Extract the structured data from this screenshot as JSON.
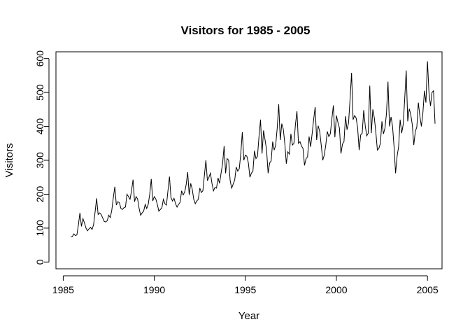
{
  "chart_data": {
    "type": "line",
    "title": "Visitors for 1985 - 2005",
    "xlabel": "Year",
    "ylabel": "Visitors",
    "xlim": [
      1984.6,
      2005.8
    ],
    "ylim": [
      -20,
      620
    ],
    "x_ticks": [
      1985,
      1990,
      1995,
      2000,
      2005
    ],
    "y_ticks": [
      0,
      100,
      200,
      300,
      400,
      500,
      600
    ],
    "grid": false,
    "legend": "none",
    "line_color": "#000000",
    "series": [
      {
        "x_start": 1985.4167,
        "step": 0.083333,
        "values": [
          75,
          75,
          83,
          78,
          80,
          110,
          145,
          105,
          128,
          115,
          100,
          92,
          98,
          102,
          96,
          110,
          148,
          188,
          140,
          145,
          140,
          130,
          120,
          118,
          122,
          138,
          131,
          153,
          190,
          222,
          168,
          178,
          175,
          158,
          155,
          160,
          162,
          200,
          193,
          185,
          210,
          243,
          178,
          193,
          186,
          158,
          138,
          145,
          150,
          170,
          158,
          170,
          200,
          245,
          180,
          193,
          186,
          170,
          150,
          155,
          160,
          185,
          172,
          168,
          210,
          252,
          190,
          180,
          188,
          172,
          162,
          170,
          176,
          210,
          198,
          206,
          228,
          265,
          198,
          232,
          215,
          185,
          172,
          180,
          185,
          218,
          205,
          210,
          255,
          300,
          240,
          250,
          262,
          232,
          210,
          220,
          218,
          248,
          232,
          262,
          290,
          342,
          262,
          305,
          300,
          240,
          218,
          230,
          242,
          280,
          268,
          275,
          320,
          383,
          300,
          315,
          312,
          292,
          250,
          262,
          268,
          328,
          305,
          312,
          370,
          420,
          320,
          388,
          360,
          330,
          262,
          292,
          298,
          355,
          330,
          345,
          395,
          465,
          360,
          408,
          392,
          350,
          290,
          325,
          318,
          378,
          345,
          350,
          405,
          445,
          350,
          355,
          342,
          335,
          285,
          305,
          310,
          370,
          340,
          378,
          420,
          457,
          360,
          402,
          385,
          345,
          300,
          315,
          345,
          385,
          370,
          378,
          422,
          462,
          368,
          432,
          412,
          395,
          320,
          348,
          355,
          430,
          390,
          410,
          480,
          558,
          420,
          432,
          425,
          395,
          330,
          375,
          380,
          448,
          402,
          372,
          380,
          520,
          380,
          450,
          425,
          382,
          330,
          335,
          350,
          415,
          378,
          395,
          438,
          532,
          400,
          428,
          400,
          340,
          262,
          312,
          340,
          420,
          380,
          405,
          480,
          565,
          415,
          452,
          435,
          405,
          345,
          385,
          398,
          470,
          430,
          400,
          440,
          505,
          470,
          592,
          500,
          460,
          500,
          505,
          408
        ]
      }
    ]
  }
}
